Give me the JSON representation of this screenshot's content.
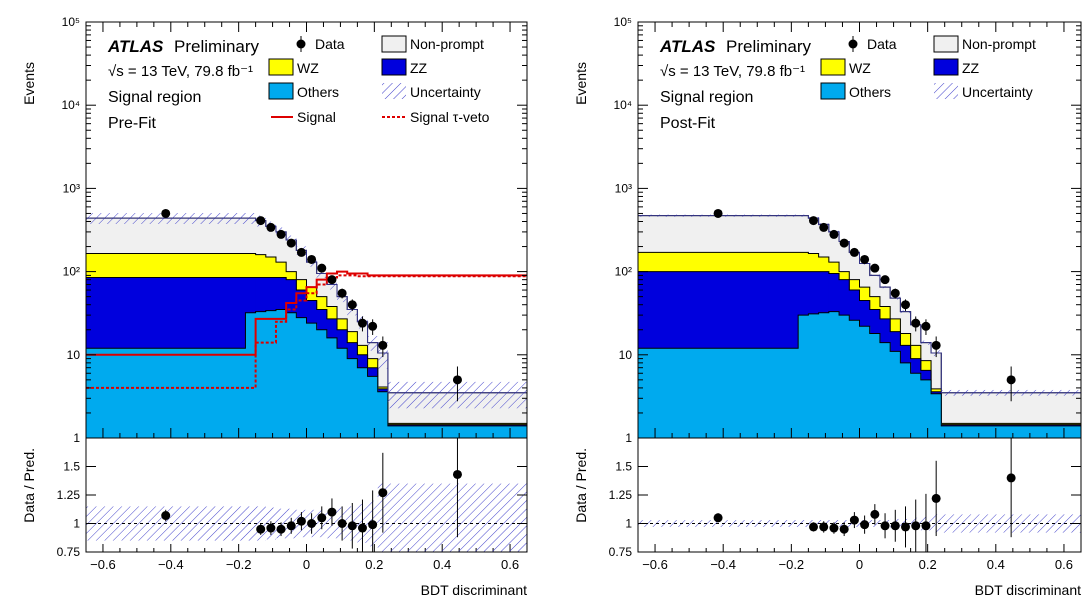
{
  "chart_data": [
    {
      "type": "histogram",
      "panel": "left",
      "yscale": "log",
      "ylim": [
        1,
        100000
      ],
      "xlim": [
        -0.65,
        0.65
      ],
      "ylabel": "Events",
      "xlabel": "BDT discriminant",
      "ratio_ylabel": "Data / Pred.",
      "ratio_ylim": [
        0.75,
        1.75
      ],
      "ratio_ticks": [
        "0.75",
        "1",
        "1.25",
        "1.5"
      ],
      "y_ticks": [
        "1",
        "10",
        "10²",
        "10³",
        "10⁴",
        "10⁵"
      ],
      "x_ticks": [
        "−0.6",
        "−0.4",
        "−0.2",
        "0",
        "0.2",
        "0.4",
        "0.6"
      ],
      "annotation": {
        "experiment": "ATLAS",
        "status": "Preliminary",
        "energy": "√s = 13 TeV, 79.8 fb⁻¹",
        "region": "Signal region",
        "fit": "Pre-Fit"
      },
      "legend": {
        "data": "Data",
        "nonprompt": "Non-prompt",
        "wz": "WZ",
        "zz": "ZZ",
        "others": "Others",
        "unc": "Uncertainty",
        "signal": "Signal",
        "signal_tauveto": "Signal τ-veto"
      },
      "bin_edges": [
        -0.65,
        -0.18,
        -0.15,
        -0.12,
        -0.09,
        -0.06,
        -0.03,
        0.0,
        0.03,
        0.06,
        0.09,
        0.12,
        0.15,
        0.18,
        0.21,
        0.24,
        0.65
      ],
      "stack": {
        "others": [
          12,
          32,
          33,
          34,
          35,
          32,
          28,
          24,
          20,
          16,
          12,
          9,
          7,
          5.5,
          3.6,
          1.4
        ],
        "zz": [
          85,
          85,
          85,
          85,
          85,
          80,
          60,
          45,
          35,
          27,
          20,
          14,
          10,
          7,
          3.9,
          1.45
        ],
        "wz": [
          165,
          165,
          160,
          150,
          130,
          100,
          80,
          65,
          50,
          38,
          27,
          19,
          13,
          9,
          4.1,
          1.5
        ],
        "nonprompt": [
          440,
          440,
          410,
          350,
          300,
          240,
          180,
          130,
          95,
          70,
          50,
          35,
          25,
          14,
          10.5,
          3.5
        ]
      },
      "signal": [
        10,
        10,
        27,
        27,
        27,
        42,
        55,
        65,
        80,
        95,
        100,
        95,
        95,
        90,
        90,
        90
      ],
      "signal_tauveto": [
        4,
        4,
        14,
        14,
        25,
        35,
        45,
        55,
        70,
        85,
        90,
        90,
        88,
        88,
        88,
        88
      ],
      "data_x": [
        -0.415,
        -0.135,
        -0.105,
        -0.075,
        -0.045,
        -0.015,
        0.015,
        0.045,
        0.075,
        0.105,
        0.135,
        0.165,
        0.195,
        0.225,
        0.445
      ],
      "data_y": [
        500,
        410,
        340,
        280,
        220,
        170,
        140,
        110,
        80,
        55,
        40,
        24,
        22,
        13,
        5
      ],
      "ratio_y": [
        1.07,
        0.95,
        0.96,
        0.95,
        0.98,
        1.02,
        1.0,
        1.05,
        1.1,
        1.0,
        0.98,
        0.96,
        0.99,
        1.27,
        1.43
      ],
      "ratio_err": [
        0.05,
        0.05,
        0.06,
        0.06,
        0.07,
        0.08,
        0.09,
        0.1,
        0.12,
        0.15,
        0.2,
        0.25,
        0.3,
        0.35,
        0.55
      ],
      "ratio_unc_band": [
        0.15,
        0.15,
        0.15,
        0.14,
        0.13,
        0.13,
        0.12,
        0.12,
        0.12,
        0.13,
        0.14,
        0.15,
        0.17,
        0.2,
        0.35,
        0.35
      ]
    },
    {
      "type": "histogram",
      "panel": "right",
      "yscale": "log",
      "ylim": [
        1,
        100000
      ],
      "xlim": [
        -0.65,
        0.65
      ],
      "ylabel": "Events",
      "xlabel": "BDT discriminant",
      "ratio_ylabel": "Data / Pred.",
      "ratio_ylim": [
        0.75,
        1.75
      ],
      "ratio_ticks": [
        "0.75",
        "1",
        "1.25",
        "1.5"
      ],
      "y_ticks": [
        "1",
        "10",
        "10²",
        "10³",
        "10⁴",
        "10⁵"
      ],
      "x_ticks": [
        "−0.6",
        "−0.4",
        "−0.2",
        "0",
        "0.2",
        "0.4",
        "0.6"
      ],
      "annotation": {
        "experiment": "ATLAS",
        "status": "Preliminary",
        "energy": "√s = 13 TeV, 79.8 fb⁻¹",
        "region": "Signal region",
        "fit": "Post-Fit"
      },
      "legend": {
        "data": "Data",
        "nonprompt": "Non-prompt",
        "wz": "WZ",
        "zz": "ZZ",
        "others": "Others",
        "unc": "Uncertainty"
      },
      "bin_edges": [
        -0.65,
        -0.18,
        -0.15,
        -0.12,
        -0.09,
        -0.06,
        -0.03,
        0.0,
        0.03,
        0.06,
        0.09,
        0.12,
        0.15,
        0.18,
        0.21,
        0.24,
        0.65
      ],
      "stack": {
        "others": [
          12,
          30,
          31,
          32,
          33,
          30,
          26,
          22,
          18,
          14,
          11,
          8,
          6,
          5,
          3.4,
          1.4
        ],
        "zz": [
          100,
          100,
          100,
          100,
          95,
          80,
          60,
          45,
          35,
          27,
          19,
          13,
          9,
          6.5,
          3.6,
          1.45
        ],
        "wz": [
          170,
          170,
          165,
          150,
          130,
          100,
          80,
          65,
          50,
          38,
          27,
          18,
          13,
          8.5,
          3.9,
          1.5
        ],
        "nonprompt": [
          470,
          470,
          440,
          370,
          300,
          230,
          170,
          125,
          90,
          65,
          48,
          33,
          23,
          14,
          10.5,
          3.5
        ]
      },
      "data_x": [
        -0.415,
        -0.135,
        -0.105,
        -0.075,
        -0.045,
        -0.015,
        0.015,
        0.045,
        0.075,
        0.105,
        0.135,
        0.165,
        0.195,
        0.225,
        0.445
      ],
      "data_y": [
        500,
        410,
        340,
        280,
        220,
        170,
        140,
        110,
        80,
        55,
        40,
        24,
        22,
        13,
        5
      ],
      "ratio_y": [
        1.05,
        0.97,
        0.97,
        0.96,
        0.95,
        1.03,
        0.99,
        1.08,
        0.98,
        0.98,
        0.97,
        0.98,
        0.98,
        1.22,
        1.4
      ],
      "ratio_err": [
        0.04,
        0.04,
        0.05,
        0.05,
        0.06,
        0.07,
        0.08,
        0.09,
        0.11,
        0.14,
        0.18,
        0.23,
        0.28,
        0.33,
        0.52
      ],
      "ratio_unc_band": [
        0.03,
        0.03,
        0.03,
        0.03,
        0.03,
        0.03,
        0.03,
        0.03,
        0.03,
        0.03,
        0.04,
        0.04,
        0.05,
        0.06,
        0.08,
        0.08
      ]
    }
  ],
  "colors": {
    "nonprompt": "#f0f0f0",
    "wz": "#ffff00",
    "zz": "#0000dd",
    "others": "#00aaee",
    "signal": "#dd0000",
    "unc": "#5555cc",
    "data": "#000000"
  }
}
